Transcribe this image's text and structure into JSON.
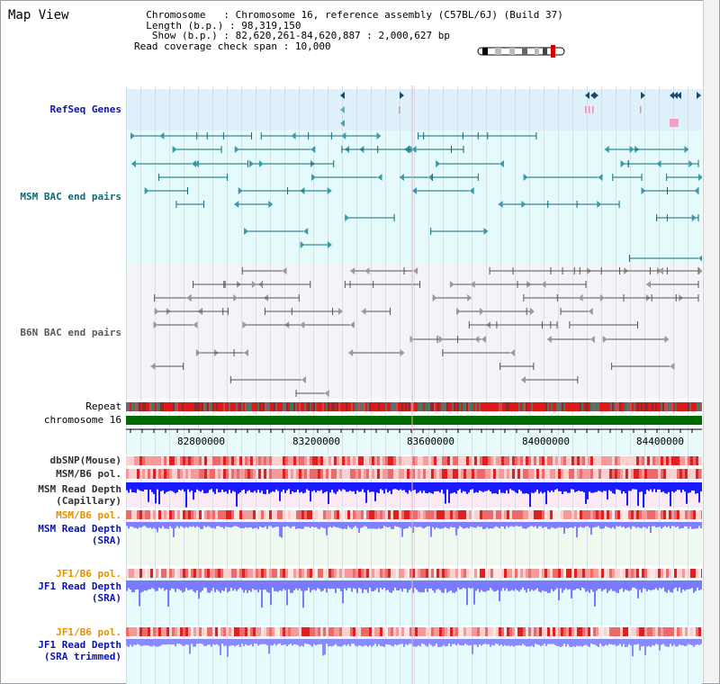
{
  "title": "Map View",
  "info": {
    "chromosome_key": "Chromosome",
    "chromosome_val": "Chromosome 16, reference assembly (C57BL/6J) (Build 37)",
    "length_key": "Length (b.p.)",
    "length_val": "98,319,150",
    "show_key": "Show (b.p.)",
    "show_val": "82,620,261-84,620,887 : 2,000,627 bp",
    "coverage_key": "Read coverage check span",
    "coverage_val": "10,000"
  },
  "tracks": {
    "refseq": "RefSeq Genes",
    "msm_bac": "MSM BAC end pairs",
    "b6n_bac": "B6N BAC end pairs",
    "repeat": "Repeat",
    "chromosome": "chromosome 16",
    "dbsnp": "dbSNP(Mouse)",
    "msm_b6_pol_1": "MSM/B6 pol.",
    "msm_read_depth_cap_1": "MSM Read Depth",
    "msm_read_depth_cap_2": "(Capillary)",
    "msm_b6_pol_2": "MSM/B6 pol.",
    "msm_read_depth_sra_1": "MSM Read Depth",
    "msm_read_depth_sra_2": "(SRA)",
    "jf1_b6_pol_1": "JF1/B6 pol.",
    "jf1_read_depth_sra_1": "JF1 Read Depth",
    "jf1_read_depth_sra_2": "(SRA)",
    "jf1_b6_pol_2": "JF1/B6 pol.",
    "jf1_read_depth_trim_1": "JF1 Read Depth",
    "jf1_read_depth_trim_2": "(SRA trimmed)"
  },
  "axis": {
    "ticks": [
      "82800000",
      "83200000",
      "83600000",
      "84000000",
      "84400000"
    ]
  },
  "colors": {
    "refseq_bg": "#dff1fb",
    "msm_bg": "#e5fafa",
    "b6n_bg": "#f4f4f8",
    "chrom_green": "#006b00",
    "depth_blue": "#1a1aff",
    "depth_light": "#8080ff",
    "pol_red": "#e52525",
    "teal": "#0e6a7a"
  }
}
